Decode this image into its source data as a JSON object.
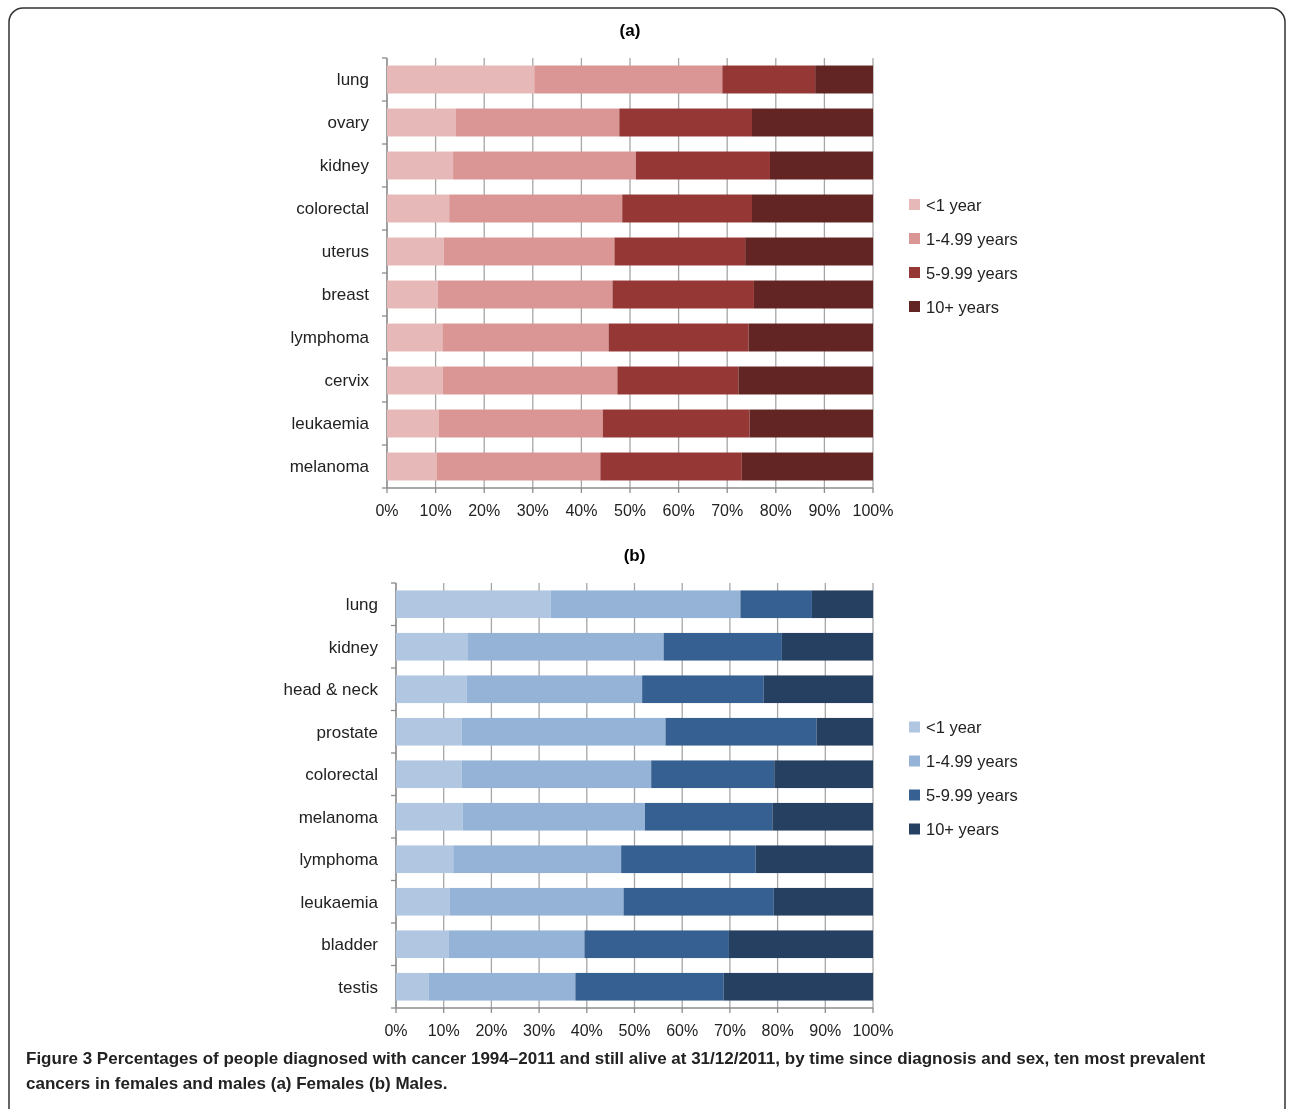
{
  "chart_data": [
    {
      "type": "bar",
      "title": "(a)",
      "orientation": "horizontal",
      "stacked": true,
      "categories": [
        "lung",
        "ovary",
        "kidney",
        "colorectal",
        "uterus",
        "breast",
        "lymphoma",
        "cervix",
        "leukaemia",
        "melanoma"
      ],
      "series": [
        {
          "name": "<1 year",
          "color": "#e6b9b8",
          "values": [
            30.3,
            14.1,
            13.6,
            12.8,
            11.7,
            10.5,
            11.4,
            11.5,
            10.6,
            10.2
          ]
        },
        {
          "name": "1-4.99 years",
          "color": "#d99694",
          "values": [
            38.7,
            33.7,
            37.6,
            35.6,
            35.1,
            35.9,
            34.2,
            35.9,
            33.8,
            33.7
          ]
        },
        {
          "name": "5-9.99 years",
          "color": "#953735",
          "values": [
            19.1,
            27.3,
            27.6,
            26.7,
            26.9,
            29.1,
            28.8,
            24.9,
            30.2,
            29.1
          ]
        },
        {
          "name": "10+ years",
          "color": "#632523",
          "values": [
            11.9,
            24.9,
            21.2,
            24.9,
            26.3,
            24.5,
            25.6,
            27.7,
            25.4,
            27.0
          ]
        }
      ],
      "xlim": [
        0,
        100
      ],
      "xticks": [
        {
          "value": 0,
          "label": "0%"
        },
        {
          "value": 10,
          "label": "10%"
        },
        {
          "value": 20,
          "label": "20%"
        },
        {
          "value": 30,
          "label": "30%"
        },
        {
          "value": 40,
          "label": "40%"
        },
        {
          "value": 50,
          "label": "50%"
        },
        {
          "value": 60,
          "label": "60%"
        },
        {
          "value": 70,
          "label": "70%"
        },
        {
          "value": 80,
          "label": "80%"
        },
        {
          "value": 90,
          "label": "90%"
        },
        {
          "value": 100,
          "label": "100%"
        }
      ],
      "grid": "x",
      "legend": "right"
    },
    {
      "type": "bar",
      "title": "(b)",
      "orientation": "horizontal",
      "stacked": true,
      "categories": [
        "lung",
        "kidney",
        "head & neck",
        "prostate",
        "colorectal",
        "melanoma",
        "lymphoma",
        "leukaemia",
        "bladder",
        "testis"
      ],
      "series": [
        {
          "name": "<1 year",
          "color": "#b0c6e1",
          "values": [
            32.4,
            15.1,
            14.8,
            13.8,
            13.8,
            14.0,
            12.0,
            11.2,
            11.1,
            6.9
          ]
        },
        {
          "name": "1-4.99 years",
          "color": "#95b3d7",
          "values": [
            39.8,
            41.0,
            36.8,
            42.7,
            39.7,
            38.2,
            35.2,
            36.5,
            28.4,
            30.7
          ]
        },
        {
          "name": "5-9.99 years",
          "color": "#376092",
          "values": [
            15.0,
            24.8,
            25.5,
            31.7,
            25.8,
            26.7,
            28.2,
            31.5,
            30.3,
            31.1
          ]
        },
        {
          "name": "10+ years",
          "color": "#254061",
          "values": [
            12.8,
            19.1,
            22.9,
            11.8,
            20.7,
            21.1,
            24.6,
            20.8,
            30.2,
            31.3
          ]
        }
      ],
      "xlim": [
        0,
        100
      ],
      "xticks": [
        {
          "value": 0,
          "label": "0%"
        },
        {
          "value": 10,
          "label": "10%"
        },
        {
          "value": 20,
          "label": "20%"
        },
        {
          "value": 30,
          "label": "30%"
        },
        {
          "value": 40,
          "label": "40%"
        },
        {
          "value": 50,
          "label": "50%"
        },
        {
          "value": 60,
          "label": "60%"
        },
        {
          "value": 70,
          "label": "70%"
        },
        {
          "value": 80,
          "label": "80%"
        },
        {
          "value": 90,
          "label": "90%"
        },
        {
          "value": 100,
          "label": "100%"
        }
      ],
      "grid": "x",
      "legend": "right",
      "annotations": [
        "Figure 3 Percentages of people diagnosed with cancer 1994–2011 and still alive at 31/12/2011, by time since diagnosis and sex, ten most prevalent cancers in females and males (a) Females (b) Males."
      ]
    }
  ]
}
